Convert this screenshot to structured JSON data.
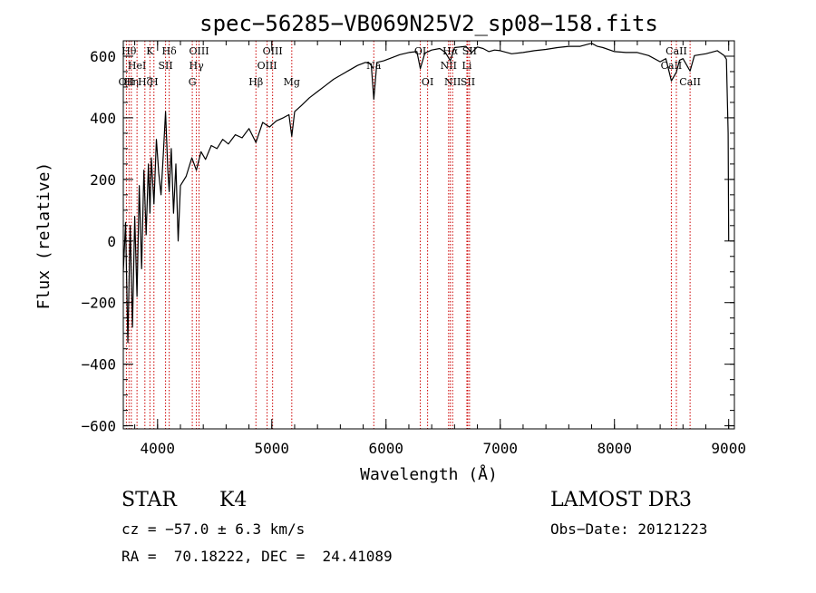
{
  "chart_data": {
    "type": "line",
    "title": "spec−56285−VB069N25V2_sp08−158.fits",
    "xlabel": "Wavelength (Å)",
    "ylabel": "Flux (relative)",
    "xlim": [
      3700,
      9050
    ],
    "ylim": [
      -610,
      650
    ],
    "x_ticks": [
      4000,
      5000,
      6000,
      7000,
      8000,
      9000
    ],
    "x_tick_labels": [
      "4000",
      "5000",
      "6000",
      "7000",
      "8000",
      "9000"
    ],
    "y_ticks": [
      -600,
      -400,
      -200,
      0,
      200,
      400,
      600
    ],
    "y_tick_labels": [
      "−600",
      "−400",
      "−200",
      "0",
      "200",
      "400",
      "600"
    ],
    "x_minor_step": 200,
    "y_minor_step": 50,
    "spectrum": {
      "x": [
        3700,
        3720,
        3740,
        3760,
        3780,
        3800,
        3820,
        3840,
        3860,
        3880,
        3900,
        3920,
        3933,
        3945,
        3968,
        3990,
        4010,
        4030,
        4050,
        4070,
        4090,
        4102,
        4120,
        4140,
        4160,
        4180,
        4200,
        4250,
        4300,
        4340,
        4380,
        4420,
        4470,
        4520,
        4570,
        4620,
        4680,
        4740,
        4800,
        4861,
        4920,
        4980,
        5040,
        5100,
        5150,
        5175,
        5200,
        5260,
        5330,
        5400,
        5470,
        5540,
        5610,
        5680,
        5750,
        5820,
        5870,
        5893,
        5920,
        5980,
        6050,
        6120,
        6200,
        6270,
        6300,
        6340,
        6400,
        6470,
        6520,
        6563,
        6600,
        6650,
        6700,
        6750,
        6800,
        6850,
        6900,
        6950,
        7000,
        7100,
        7200,
        7300,
        7400,
        7500,
        7600,
        7700,
        7800,
        7850,
        7900,
        8000,
        8100,
        8200,
        8300,
        8400,
        8450,
        8498,
        8542,
        8570,
        8600,
        8662,
        8700,
        8800,
        8900,
        8960,
        8980,
        8995,
        9000
      ],
      "y": [
        -100,
        60,
        -330,
        50,
        -280,
        80,
        -180,
        180,
        -90,
        230,
        20,
        250,
        90,
        270,
        120,
        330,
        220,
        150,
        280,
        420,
        230,
        160,
        300,
        90,
        250,
        0,
        180,
        210,
        270,
        230,
        290,
        265,
        310,
        300,
        330,
        315,
        345,
        335,
        365,
        320,
        385,
        370,
        390,
        400,
        410,
        340,
        420,
        440,
        465,
        485,
        505,
        525,
        540,
        555,
        570,
        580,
        575,
        460,
        580,
        585,
        595,
        605,
        612,
        615,
        560,
        610,
        620,
        625,
        612,
        585,
        628,
        630,
        632,
        612,
        630,
        625,
        615,
        620,
        618,
        608,
        612,
        618,
        622,
        628,
        632,
        632,
        642,
        632,
        628,
        615,
        612,
        612,
        602,
        582,
        592,
        520,
        548,
        587,
        592,
        552,
        602,
        608,
        618,
        602,
        590,
        350,
        0
      ]
    },
    "lines": [
      {
        "wavelength": 3727,
        "label": "OII",
        "row": 3
      },
      {
        "wavelength": 3750,
        "label": "Hθ",
        "row": 1
      },
      {
        "wavelength": 3770,
        "label": "Hη",
        "row": 3
      },
      {
        "wavelength": 3820,
        "label": "HeI",
        "row": 2
      },
      {
        "wavelength": 3889,
        "label": "Hζ",
        "row": 3
      },
      {
        "wavelength": 3933,
        "label": "K",
        "row": 1
      },
      {
        "wavelength": 3968,
        "label": "H",
        "row": 3
      },
      {
        "wavelength": 4070,
        "label": "SII",
        "row": 2
      },
      {
        "wavelength": 4102,
        "label": "Hδ",
        "row": 1
      },
      {
        "wavelength": 4304,
        "label": "G",
        "row": 3
      },
      {
        "wavelength": 4340,
        "label": "Hγ",
        "row": 2
      },
      {
        "wavelength": 4363,
        "label": "OIII",
        "row": 1
      },
      {
        "wavelength": 4861,
        "label": "Hβ",
        "row": 3
      },
      {
        "wavelength": 4959,
        "label": "OIII",
        "row": 2
      },
      {
        "wavelength": 5007,
        "label": "OIII",
        "row": 1
      },
      {
        "wavelength": 5175,
        "label": "Mg",
        "row": 3
      },
      {
        "wavelength": 5893,
        "label": "Na",
        "row": 2
      },
      {
        "wavelength": 6300,
        "label": "OI",
        "row": 1
      },
      {
        "wavelength": 6364,
        "label": "OI",
        "row": 3
      },
      {
        "wavelength": 6548,
        "label": "NII",
        "row": 2
      },
      {
        "wavelength": 6563,
        "label": "Hα",
        "row": 1
      },
      {
        "wavelength": 6583,
        "label": "NII",
        "row": 3
      },
      {
        "wavelength": 6708,
        "label": "Li",
        "row": 2
      },
      {
        "wavelength": 6716,
        "label": "SII",
        "row": 3
      },
      {
        "wavelength": 6731,
        "label": "SII",
        "row": 1
      },
      {
        "wavelength": 8498,
        "label": "CaII",
        "row": 2
      },
      {
        "wavelength": 8542,
        "label": "CaII",
        "row": 1
      },
      {
        "wavelength": 8662,
        "label": "CaII",
        "row": 3
      }
    ],
    "line_color": "#cc0000",
    "spectrum_color": "#000000"
  },
  "info": {
    "object_class": "STAR",
    "subclass": "K4",
    "survey": "LAMOST DR3",
    "redshift": "cz = −57.0 ± 6.3 km/s",
    "obs_date": "Obs−Date: 20121223",
    "coordinates": "RA =  70.18222, DEC =  24.41089"
  }
}
